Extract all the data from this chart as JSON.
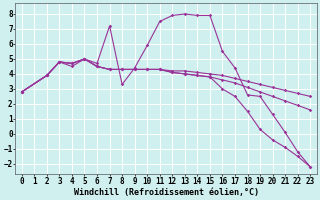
{
  "bg_color": "#cff0ee",
  "line_color": "#993399",
  "grid_color": "#aadddd",
  "xlabel": "Windchill (Refroidissement éolien,°C)",
  "tick_fontsize": 5.5,
  "xlim": [
    -0.5,
    23.5
  ],
  "ylim": [
    -2.7,
    8.7
  ],
  "yticks": [
    -2,
    -1,
    0,
    1,
    2,
    3,
    4,
    5,
    6,
    7,
    8
  ],
  "xticks": [
    0,
    1,
    2,
    3,
    4,
    5,
    6,
    7,
    8,
    9,
    10,
    11,
    12,
    13,
    14,
    15,
    16,
    17,
    18,
    19,
    20,
    21,
    22,
    23
  ],
  "series": [
    {
      "x": [
        0,
        2,
        3,
        4,
        5,
        6,
        7,
        8,
        9,
        10,
        11,
        12,
        13,
        14,
        15,
        16,
        17,
        18,
        19,
        20,
        21,
        22,
        23
      ],
      "y": [
        2.8,
        3.9,
        4.8,
        4.5,
        5.0,
        4.7,
        7.2,
        3.3,
        4.4,
        5.9,
        7.5,
        7.9,
        8.0,
        7.9,
        7.9,
        5.5,
        4.4,
        2.6,
        2.5,
        1.3,
        0.1,
        -1.2,
        -2.2
      ]
    },
    {
      "x": [
        0,
        2,
        3,
        4,
        5,
        6,
        7,
        8,
        9,
        10,
        11,
        12,
        13,
        14,
        15,
        16,
        17,
        18,
        19,
        20,
        21,
        22,
        23
      ],
      "y": [
        2.8,
        3.9,
        4.8,
        4.7,
        5.0,
        4.5,
        4.3,
        4.3,
        4.3,
        4.3,
        4.3,
        4.2,
        4.2,
        4.1,
        4.0,
        3.9,
        3.7,
        3.5,
        3.3,
        3.1,
        2.9,
        2.7,
        2.5
      ]
    },
    {
      "x": [
        0,
        2,
        3,
        4,
        5,
        6,
        7,
        8,
        9,
        10,
        11,
        12,
        13,
        14,
        15,
        16,
        17,
        18,
        19,
        20,
        21,
        22,
        23
      ],
      "y": [
        2.8,
        3.9,
        4.8,
        4.7,
        5.0,
        4.5,
        4.3,
        4.3,
        4.3,
        4.3,
        4.3,
        4.1,
        4.0,
        3.9,
        3.8,
        3.6,
        3.4,
        3.1,
        2.8,
        2.5,
        2.2,
        1.9,
        1.6
      ]
    },
    {
      "x": [
        0,
        2,
        3,
        4,
        5,
        6,
        7,
        8,
        9,
        10,
        11,
        12,
        13,
        14,
        15,
        16,
        17,
        18,
        19,
        20,
        21,
        22,
        23
      ],
      "y": [
        2.8,
        3.9,
        4.8,
        4.7,
        5.0,
        4.5,
        4.3,
        4.3,
        4.3,
        4.3,
        4.3,
        4.1,
        4.0,
        3.9,
        3.8,
        3.0,
        2.5,
        1.5,
        0.3,
        -0.4,
        -0.9,
        -1.5,
        -2.2
      ]
    }
  ]
}
